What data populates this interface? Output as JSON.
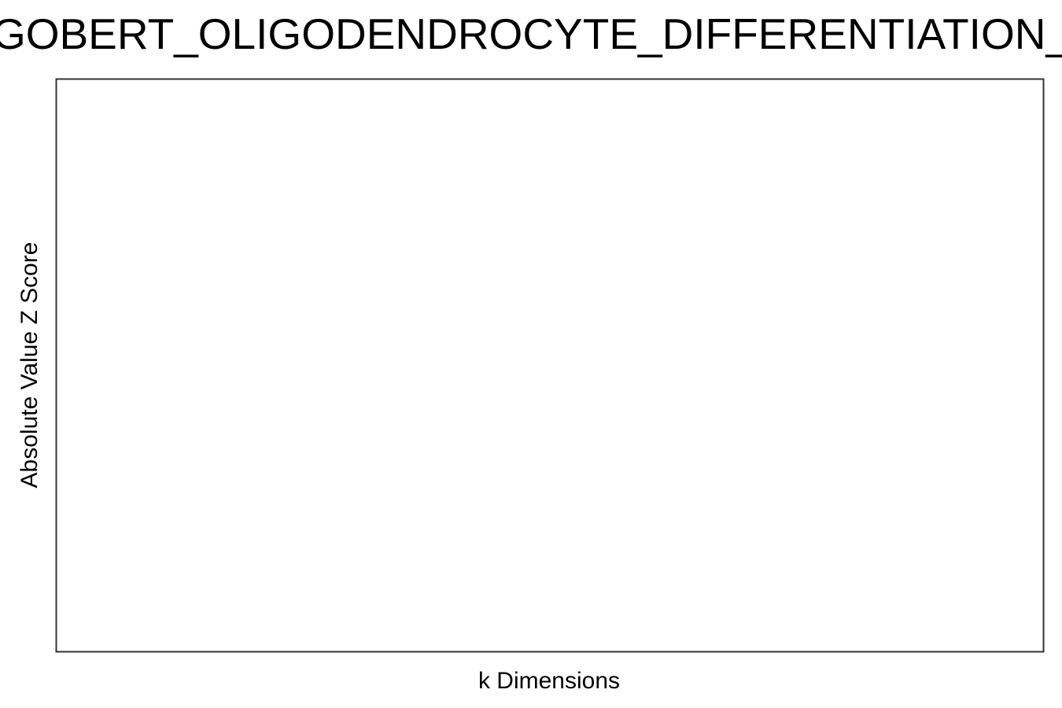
{
  "chart_data": {
    "type": "line",
    "title": "GOBERT_OLIGODENDROCYTE_DIFFERENTIATION_",
    "xlabel": "k Dimensions",
    "ylabel": "Absolute Value Z Score",
    "series": [],
    "grid": false,
    "legend": "none"
  },
  "colors": {
    "background": "#ffffff",
    "frame": "#333333",
    "text": "#000000"
  }
}
